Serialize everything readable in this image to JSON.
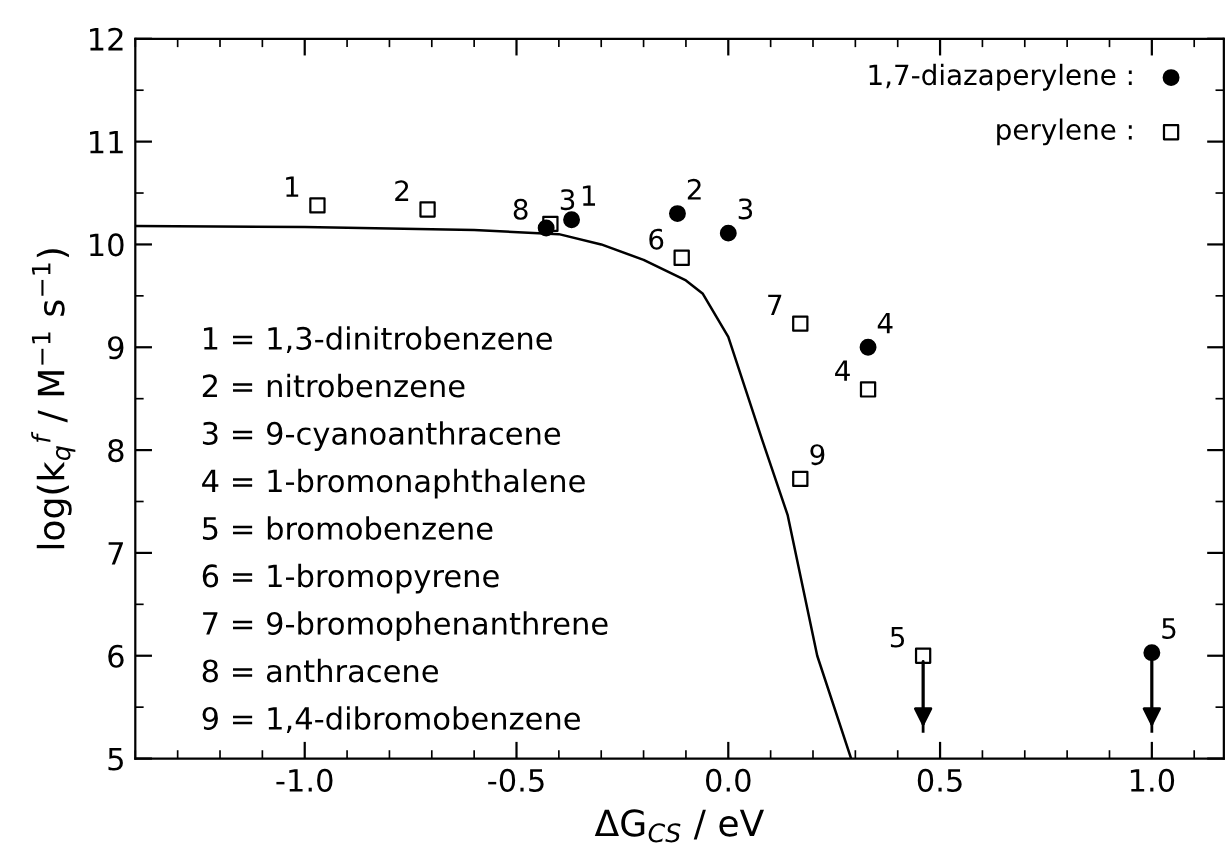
{
  "chart_data": {
    "type": "scatter",
    "xlabel": "ΔG$_{CS}$ / eV",
    "ylabel": "log(k$_{q}$$^{f}$ / M$^{−1}$ s$^{−1}$)",
    "xlim": [
      -1.4,
      1.17
    ],
    "ylim": [
      5,
      12
    ],
    "xticks": [
      {
        "value": -1.0,
        "label": "-1.0"
      },
      {
        "value": -0.5,
        "label": "-0.5"
      },
      {
        "value": 0.0,
        "label": "0.0"
      },
      {
        "value": 0.5,
        "label": "0.5"
      },
      {
        "value": 1.0,
        "label": "1.0"
      }
    ],
    "yticks": [
      5,
      6,
      7,
      8,
      9,
      10,
      11,
      12
    ],
    "grid": false,
    "legend": "top right",
    "series": [
      {
        "name": "1,7-diazaperylene :",
        "marker": "circle",
        "color": "#000000",
        "x": [
          -0.43,
          -0.37,
          -0.12,
          0.0,
          0.33,
          1.0
        ],
        "values": [
          10.16,
          10.24,
          10.3,
          10.11,
          9.0,
          6.03
        ],
        "errors": [
          null,
          null,
          null,
          null,
          null,
          [
            5.25,
            6.03
          ]
        ]
      },
      {
        "name": "perylene :",
        "marker": "square",
        "color": "#000000",
        "x": [
          -0.97,
          -0.71,
          -0.42,
          -0.11,
          0.17,
          0.33,
          0.17,
          0.46
        ],
        "values": [
          10.38,
          10.34,
          10.2,
          9.87,
          9.23,
          8.59,
          7.72,
          6.0
        ],
        "errors": [
          null,
          null,
          null,
          null,
          null,
          null,
          null,
          [
            5.25,
            6.0
          ]
        ]
      },
      {
        "type": "line",
        "marker": "none",
        "line_style": "solid",
        "color": "#000000",
        "x": [
          -1.4,
          -1.0,
          -0.6,
          -0.4,
          -0.3,
          -0.2,
          -0.1,
          -0.06,
          0.0,
          0.04,
          0.08,
          0.14,
          0.21,
          0.29
        ],
        "values": [
          10.18,
          10.17,
          10.14,
          10.1,
          10.0,
          9.85,
          9.65,
          9.52,
          9.1,
          8.6,
          8.1,
          7.37,
          6.0,
          5.0
        ]
      }
    ],
    "annotations": [
      {
        "text": "1",
        "x": -0.97,
        "y": 10.38
      },
      {
        "text": "1",
        "x": -0.37,
        "y": 10.24
      },
      {
        "text": "8",
        "x": -0.43,
        "y": 10.16
      },
      {
        "text": "3",
        "x": -0.42,
        "y": 10.2
      },
      {
        "text": "2",
        "x": -0.71,
        "y": 10.34
      },
      {
        "text": "3",
        "x": 0.0,
        "y": 10.11
      },
      {
        "text": "6",
        "x": -0.11,
        "y": 9.87
      },
      {
        "text": "2",
        "x": -0.12,
        "y": 10.3
      },
      {
        "text": "7",
        "x": 0.17,
        "y": 9.23
      },
      {
        "text": "4",
        "x": 0.33,
        "y": 9.0
      },
      {
        "text": "4",
        "x": 0.33,
        "y": 8.59
      },
      {
        "text": "9",
        "x": 0.17,
        "y": 7.72
      },
      {
        "text": "5",
        "x": 0.46,
        "y": 6.0
      },
      {
        "text": "5",
        "x": 1.0,
        "y": 6.03
      },
      "1 = 1,3-dinitrobenzene",
      "2 = nitrobenzene",
      "3 = 9-cyanoanthracene",
      "4 = 1-bromonaphthalene",
      "5 = bromobenzene",
      "6 = 1-bromopyrene",
      "7 = 9-bromophenanthrene",
      "8 = anthracene",
      "9 = 1,4-dibromobenzene"
    ]
  }
}
